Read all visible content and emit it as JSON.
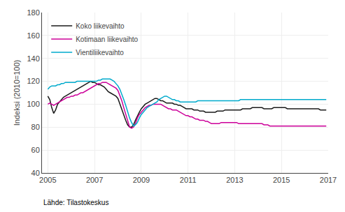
{
  "chart_data": {
    "type": "line",
    "ylabel": "Indeksi (2010=100)",
    "annotations": [
      {
        "text": "Lähde: Tilastokeskus"
      }
    ],
    "x": [
      2005,
      2005.0833333333333,
      2005.1666666666667,
      2005.25,
      2005.3333333333333,
      2005.4166666666667,
      2005.5,
      2005.5833333333333,
      2005.6666666666667,
      2005.75,
      2005.8333333333333,
      2005.9166666666667,
      2006,
      2006.0833333333333,
      2006.1666666666667,
      2006.25,
      2006.3333333333333,
      2006.4166666666667,
      2006.5,
      2006.5833333333333,
      2006.6666666666667,
      2006.75,
      2006.8333333333333,
      2006.9166666666667,
      2007,
      2007.0833333333333,
      2007.1666666666667,
      2007.25,
      2007.3333333333333,
      2007.4166666666667,
      2007.5,
      2007.5833333333333,
      2007.6666666666667,
      2007.75,
      2007.8333333333333,
      2007.9166666666667,
      2008,
      2008.0833333333333,
      2008.1666666666667,
      2008.25,
      2008.3333333333333,
      2008.4166666666667,
      2008.5,
      2008.5833333333333,
      2008.6666666666667,
      2008.75,
      2008.8333333333333,
      2008.9166666666667,
      2009,
      2009.0833333333333,
      2009.1666666666667,
      2009.25,
      2009.3333333333333,
      2009.4166666666667,
      2009.5,
      2009.5833333333333,
      2009.6666666666667,
      2009.75,
      2009.8333333333333,
      2009.9166666666667,
      2010,
      2010.0833333333333,
      2010.1666666666667,
      2010.25,
      2010.3333333333333,
      2010.4166666666667,
      2010.5,
      2010.5833333333333,
      2010.6666666666667,
      2010.75,
      2010.8333333333333,
      2010.9166666666667,
      2011,
      2011.0833333333333,
      2011.1666666666667,
      2011.25,
      2011.3333333333333,
      2011.4166666666667,
      2011.5,
      2011.5833333333333,
      2011.6666666666667,
      2011.75,
      2011.8333333333333,
      2011.9166666666667,
      2012,
      2012.0833333333333,
      2012.1666666666667,
      2012.25,
      2012.3333333333333,
      2012.4166666666667,
      2012.5,
      2012.5833333333333,
      2012.6666666666667,
      2012.75,
      2012.8333333333333,
      2012.9166666666667,
      2013,
      2013.0833333333333,
      2013.1666666666667,
      2013.25,
      2013.3333333333333,
      2013.4166666666667,
      2013.5,
      2013.5833333333333,
      2013.6666666666667,
      2013.75,
      2013.8333333333333,
      2013.9166666666667,
      2014,
      2014.0833333333333,
      2014.1666666666667,
      2014.25,
      2014.3333333333333,
      2014.4166666666667,
      2014.5,
      2014.5833333333333,
      2014.6666666666667,
      2014.75,
      2014.8333333333333,
      2014.9166666666667,
      2015,
      2015.0833333333333,
      2015.1666666666667,
      2015.25,
      2015.3333333333333,
      2015.4166666666667,
      2015.5,
      2015.5833333333333,
      2015.6666666666667,
      2015.75,
      2015.8333333333333,
      2015.9166666666667,
      2016,
      2016.0833333333333,
      2016.1666666666667,
      2016.25,
      2016.3333333333333,
      2016.4166666666667,
      2016.5,
      2016.5833333333333,
      2016.6666666666667,
      2016.75,
      2016.8333333333333,
      2016.9166666666667
    ],
    "series": [
      {
        "name": "Koko liikevaihto",
        "color": "#1a1a1a",
        "values": [
          107,
          104,
          97,
          92,
          95,
          100,
          102,
          104,
          106,
          107,
          108,
          109,
          110,
          111,
          112,
          113,
          114,
          115,
          116,
          117,
          118,
          119,
          120,
          119,
          119,
          118,
          117,
          117,
          116,
          115,
          113,
          111,
          110,
          109,
          108,
          107,
          105,
          100,
          95,
          90,
          86,
          82,
          80,
          80,
          82,
          86,
          90,
          93,
          96,
          98,
          100,
          101,
          102,
          103,
          104,
          105,
          105,
          104,
          103,
          103,
          102,
          101,
          101,
          101,
          101,
          100,
          100,
          99,
          99,
          98,
          97,
          96,
          96,
          96,
          96,
          95,
          95,
          95,
          94,
          94,
          94,
          93,
          93,
          93,
          93,
          93,
          93,
          94,
          94,
          94,
          94,
          95,
          95,
          95,
          95,
          95,
          95,
          95,
          95,
          95,
          96,
          96,
          96,
          96,
          96,
          97,
          97,
          97,
          97,
          97,
          97,
          96,
          96,
          96,
          96,
          96,
          97,
          97,
          97,
          97,
          97,
          97,
          97,
          96,
          96,
          96,
          96,
          96,
          96,
          96,
          96,
          96,
          96,
          96,
          96,
          96,
          96,
          96,
          96,
          96,
          95,
          95,
          95,
          95
        ]
      },
      {
        "name": "Kotimaan liikevaihto",
        "color": "#cc0099",
        "values": [
          100,
          101,
          100,
          99,
          100,
          101,
          102,
          103,
          104,
          105,
          106,
          106,
          107,
          107,
          108,
          108,
          109,
          110,
          110,
          111,
          112,
          113,
          114,
          115,
          116,
          117,
          118,
          118,
          119,
          119,
          119,
          118,
          117,
          116,
          115,
          114,
          112,
          108,
          103,
          97,
          91,
          85,
          80,
          79,
          80,
          83,
          88,
          91,
          93,
          95,
          97,
          98,
          99,
          99,
          100,
          100,
          100,
          100,
          100,
          99,
          98,
          97,
          96,
          96,
          95,
          95,
          95,
          94,
          93,
          92,
          91,
          90,
          90,
          89,
          89,
          88,
          87,
          87,
          86,
          86,
          86,
          85,
          85,
          84,
          83,
          83,
          83,
          83,
          83,
          84,
          84,
          84,
          84,
          84,
          84,
          84,
          84,
          84,
          83,
          83,
          83,
          83,
          83,
          83,
          83,
          83,
          83,
          83,
          83,
          83,
          83,
          82,
          82,
          82,
          81,
          81,
          81,
          81,
          81,
          81,
          81,
          81,
          81,
          81,
          81,
          81,
          81,
          81,
          81,
          81,
          81,
          81,
          81,
          81,
          81,
          81,
          81,
          81,
          81,
          81,
          81,
          81,
          81,
          81
        ]
      },
      {
        "name": "Vientiliikevaihto",
        "color": "#00aacc",
        "values": [
          113,
          115,
          116,
          116,
          116,
          117,
          117,
          118,
          118,
          119,
          119,
          119,
          119,
          119,
          119,
          120,
          120,
          120,
          120,
          120,
          120,
          120,
          120,
          120,
          120,
          120,
          121,
          121,
          122,
          122,
          122,
          122,
          122,
          121,
          120,
          118,
          116,
          113,
          109,
          104,
          99,
          93,
          88,
          84,
          81,
          82,
          84,
          88,
          91,
          93,
          95,
          97,
          98,
          99,
          100,
          101,
          102,
          104,
          105,
          106,
          107,
          107,
          106,
          105,
          104,
          104,
          103,
          103,
          102,
          102,
          102,
          102,
          102,
          102,
          102,
          102,
          102,
          103,
          103,
          103,
          103,
          103,
          103,
          103,
          103,
          103,
          103,
          103,
          103,
          103,
          103,
          103,
          103,
          103,
          103,
          103,
          103,
          103,
          103,
          104,
          104,
          104,
          104,
          104,
          104,
          104,
          104,
          104,
          104,
          104,
          104,
          104,
          104,
          104,
          104,
          104,
          104,
          104,
          104,
          104,
          104,
          104,
          104,
          104,
          104,
          104,
          104,
          104,
          104,
          104,
          104,
          104,
          104,
          104,
          104,
          104,
          104,
          104,
          104,
          104,
          104,
          104,
          104,
          104
        ]
      }
    ],
    "xlim": [
      2004.75,
      2017.0
    ],
    "xticks": [
      2005,
      2007,
      2009,
      2011,
      2013,
      2015,
      2017
    ],
    "ylim": [
      40,
      180
    ],
    "yticks": [
      40,
      60,
      80,
      100,
      120,
      140,
      160,
      180
    ],
    "grid": true,
    "legend": "upper left"
  }
}
